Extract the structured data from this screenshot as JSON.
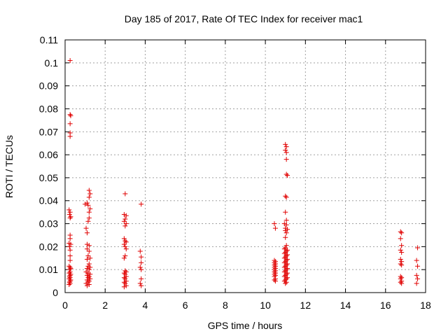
{
  "chart_data": {
    "type": "scatter",
    "title": "Day 185 of 2017, Rate Of TEC Index for receiver mac1",
    "xlabel": "GPS time / hours",
    "ylabel": "ROTI / TECUs",
    "xlim": [
      0,
      18
    ],
    "ylim": [
      0,
      0.11
    ],
    "xticks": [
      0,
      2,
      4,
      6,
      8,
      10,
      12,
      14,
      16,
      18
    ],
    "yticks": [
      0,
      0.01,
      0.02,
      0.03,
      0.04,
      0.05,
      0.06,
      0.07,
      0.08,
      0.09,
      0.1,
      0.11
    ],
    "xtick_labels": [
      "0",
      "2",
      "4",
      "6",
      "8",
      "10",
      "12",
      "14",
      "16",
      "18"
    ],
    "ytick_labels": [
      "0",
      "0.01",
      "0.02",
      "0.03",
      "0.04",
      "0.05",
      "0.06",
      "0.07",
      "0.08",
      "0.09",
      "0.1",
      "0.11"
    ],
    "grid": true,
    "marker": "+",
    "color": "#e00000",
    "series": [
      {
        "points": [
          [
            0.25,
            0.101
          ],
          [
            0.25,
            0.0775
          ],
          [
            0.28,
            0.077
          ],
          [
            0.25,
            0.0735
          ],
          [
            0.25,
            0.0695
          ],
          [
            0.25,
            0.068
          ],
          [
            0.2,
            0.036
          ],
          [
            0.25,
            0.035
          ],
          [
            0.22,
            0.034
          ],
          [
            0.28,
            0.033
          ],
          [
            0.25,
            0.0325
          ],
          [
            0.25,
            0.025
          ],
          [
            0.25,
            0.0235
          ],
          [
            0.2,
            0.0215
          ],
          [
            0.28,
            0.021
          ],
          [
            0.22,
            0.02
          ],
          [
            0.25,
            0.0185
          ],
          [
            0.25,
            0.016
          ],
          [
            0.25,
            0.014
          ],
          [
            0.2,
            0.0115
          ],
          [
            0.25,
            0.011
          ],
          [
            0.28,
            0.0105
          ],
          [
            0.22,
            0.01
          ],
          [
            0.25,
            0.009
          ],
          [
            0.2,
            0.0085
          ],
          [
            0.28,
            0.008
          ],
          [
            0.25,
            0.0075
          ],
          [
            0.22,
            0.007
          ],
          [
            0.25,
            0.0065
          ],
          [
            0.2,
            0.006
          ],
          [
            0.28,
            0.0055
          ],
          [
            0.25,
            0.005
          ],
          [
            0.22,
            0.0045
          ],
          [
            0.25,
            0.004
          ],
          [
            0.2,
            0.0035
          ],
          [
            1.0,
            0.0385
          ],
          [
            1.1,
            0.039
          ],
          [
            1.2,
            0.0445
          ],
          [
            1.25,
            0.043
          ],
          [
            1.2,
            0.0415
          ],
          [
            1.15,
            0.038
          ],
          [
            1.25,
            0.0365
          ],
          [
            1.2,
            0.035
          ],
          [
            1.2,
            0.0325
          ],
          [
            1.15,
            0.031
          ],
          [
            1.05,
            0.028
          ],
          [
            1.1,
            0.026
          ],
          [
            1.1,
            0.021
          ],
          [
            1.2,
            0.0205
          ],
          [
            1.1,
            0.019
          ],
          [
            1.2,
            0.018
          ],
          [
            1.15,
            0.016
          ],
          [
            1.25,
            0.015
          ],
          [
            1.1,
            0.0145
          ],
          [
            1.2,
            0.0125
          ],
          [
            1.15,
            0.0115
          ],
          [
            1.25,
            0.011
          ],
          [
            1.1,
            0.0105
          ],
          [
            1.2,
            0.01
          ],
          [
            1.05,
            0.009
          ],
          [
            1.15,
            0.0085
          ],
          [
            1.25,
            0.008
          ],
          [
            1.1,
            0.0075
          ],
          [
            1.2,
            0.007
          ],
          [
            1.15,
            0.0065
          ],
          [
            1.25,
            0.006
          ],
          [
            1.1,
            0.0055
          ],
          [
            1.2,
            0.005
          ],
          [
            1.15,
            0.0045
          ],
          [
            1.05,
            0.004
          ],
          [
            1.2,
            0.0035
          ],
          [
            1.1,
            0.003
          ],
          [
            3.0,
            0.043
          ],
          [
            2.95,
            0.034
          ],
          [
            3.05,
            0.0335
          ],
          [
            3.0,
            0.032
          ],
          [
            2.95,
            0.031
          ],
          [
            3.05,
            0.03
          ],
          [
            3.0,
            0.029
          ],
          [
            2.95,
            0.0235
          ],
          [
            3.0,
            0.0225
          ],
          [
            3.05,
            0.022
          ],
          [
            2.95,
            0.021
          ],
          [
            3.0,
            0.02
          ],
          [
            3.05,
            0.019
          ],
          [
            3.0,
            0.016
          ],
          [
            2.95,
            0.015
          ],
          [
            3.0,
            0.0095
          ],
          [
            3.05,
            0.009
          ],
          [
            2.95,
            0.0085
          ],
          [
            3.0,
            0.008
          ],
          [
            3.05,
            0.007
          ],
          [
            2.95,
            0.0065
          ],
          [
            3.0,
            0.006
          ],
          [
            3.05,
            0.005
          ],
          [
            2.95,
            0.0045
          ],
          [
            3.0,
            0.004
          ],
          [
            3.05,
            0.003
          ],
          [
            2.95,
            0.0025
          ],
          [
            3.8,
            0.0385
          ],
          [
            3.75,
            0.018
          ],
          [
            3.8,
            0.0155
          ],
          [
            3.8,
            0.013
          ],
          [
            3.75,
            0.011
          ],
          [
            3.8,
            0.01
          ],
          [
            3.8,
            0.006
          ],
          [
            3.75,
            0.004
          ],
          [
            3.8,
            0.003
          ],
          [
            10.45,
            0.03
          ],
          [
            10.5,
            0.028
          ],
          [
            10.45,
            0.014
          ],
          [
            10.5,
            0.0135
          ],
          [
            10.45,
            0.013
          ],
          [
            10.5,
            0.0125
          ],
          [
            10.45,
            0.012
          ],
          [
            10.5,
            0.0115
          ],
          [
            10.45,
            0.011
          ],
          [
            10.5,
            0.0105
          ],
          [
            10.45,
            0.01
          ],
          [
            10.5,
            0.0095
          ],
          [
            10.45,
            0.009
          ],
          [
            10.5,
            0.0085
          ],
          [
            10.45,
            0.008
          ],
          [
            10.5,
            0.0075
          ],
          [
            10.45,
            0.007
          ],
          [
            10.5,
            0.006
          ],
          [
            10.45,
            0.0055
          ],
          [
            10.5,
            0.005
          ],
          [
            11.0,
            0.0645
          ],
          [
            11.05,
            0.0635
          ],
          [
            11.0,
            0.062
          ],
          [
            11.05,
            0.061
          ],
          [
            11.05,
            0.058
          ],
          [
            11.05,
            0.0515
          ],
          [
            11.1,
            0.051
          ],
          [
            11.0,
            0.042
          ],
          [
            11.05,
            0.0415
          ],
          [
            11.0,
            0.035
          ],
          [
            11.05,
            0.0315
          ],
          [
            10.95,
            0.03
          ],
          [
            11.05,
            0.0295
          ],
          [
            11.0,
            0.028
          ],
          [
            11.1,
            0.0275
          ],
          [
            11.0,
            0.027
          ],
          [
            11.05,
            0.026
          ],
          [
            11.0,
            0.024
          ],
          [
            11.05,
            0.0205
          ],
          [
            11.0,
            0.0195
          ],
          [
            10.95,
            0.019
          ],
          [
            11.1,
            0.0185
          ],
          [
            11.05,
            0.018
          ],
          [
            11.0,
            0.0175
          ],
          [
            10.95,
            0.017
          ],
          [
            11.1,
            0.0165
          ],
          [
            11.05,
            0.016
          ],
          [
            11.0,
            0.0155
          ],
          [
            10.95,
            0.015
          ],
          [
            11.1,
            0.0145
          ],
          [
            11.05,
            0.014
          ],
          [
            11.0,
            0.0135
          ],
          [
            10.95,
            0.013
          ],
          [
            11.1,
            0.0125
          ],
          [
            11.05,
            0.012
          ],
          [
            11.0,
            0.0115
          ],
          [
            10.95,
            0.011
          ],
          [
            11.1,
            0.0105
          ],
          [
            11.05,
            0.01
          ],
          [
            11.0,
            0.0095
          ],
          [
            10.95,
            0.009
          ],
          [
            11.1,
            0.0085
          ],
          [
            11.05,
            0.008
          ],
          [
            11.0,
            0.0075
          ],
          [
            10.95,
            0.007
          ],
          [
            11.1,
            0.0065
          ],
          [
            11.05,
            0.006
          ],
          [
            11.0,
            0.0055
          ],
          [
            10.95,
            0.005
          ],
          [
            11.05,
            0.0045
          ],
          [
            11.0,
            0.004
          ],
          [
            16.75,
            0.0265
          ],
          [
            16.8,
            0.026
          ],
          [
            16.75,
            0.0235
          ],
          [
            16.8,
            0.0205
          ],
          [
            16.75,
            0.0185
          ],
          [
            16.8,
            0.0175
          ],
          [
            16.75,
            0.0145
          ],
          [
            16.8,
            0.0135
          ],
          [
            16.75,
            0.0125
          ],
          [
            16.8,
            0.012
          ],
          [
            16.75,
            0.007
          ],
          [
            16.8,
            0.0065
          ],
          [
            16.75,
            0.006
          ],
          [
            16.8,
            0.005
          ],
          [
            16.75,
            0.0045
          ],
          [
            16.8,
            0.004
          ],
          [
            17.6,
            0.0195
          ],
          [
            17.55,
            0.014
          ],
          [
            17.6,
            0.0115
          ],
          [
            17.55,
            0.0075
          ],
          [
            17.6,
            0.006
          ],
          [
            17.55,
            0.004
          ]
        ]
      }
    ]
  }
}
